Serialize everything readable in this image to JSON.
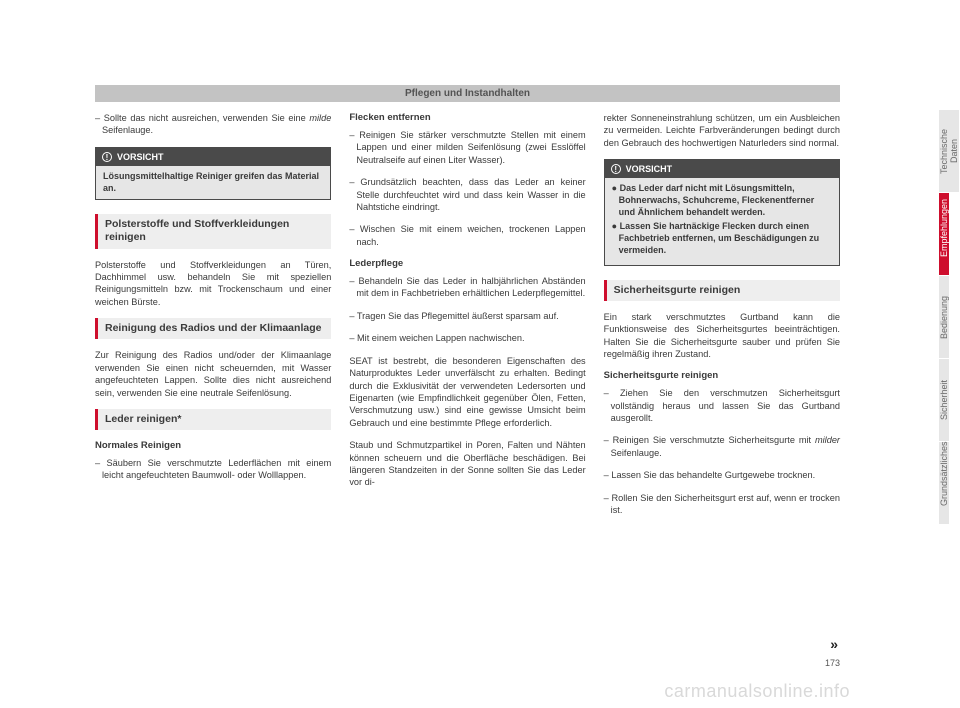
{
  "chapter_title": "Pflegen und Instandhalten",
  "page_number": "173",
  "watermark": "carmanualsonline.info",
  "continue_marker": "»",
  "side_tabs": [
    {
      "label": "Technische Daten",
      "active": false
    },
    {
      "label": "Empfehlungen",
      "active": true
    },
    {
      "label": "Bedienung",
      "active": false
    },
    {
      "label": "Sicherheit",
      "active": false
    },
    {
      "label": "Grundsätzliches",
      "active": false
    }
  ],
  "col1": {
    "intro_bullet_pre": "Sollte das nicht ausreichen, verwenden Sie eine ",
    "intro_bullet_em": "milde",
    "intro_bullet_post": " Seifenlauge.",
    "warn1": {
      "title": "VORSICHT",
      "body": "Lösungsmittelhaltige Reiniger greifen das Material an."
    },
    "sec1_title": "Polsterstoffe und Stoffverkleidungen reinigen",
    "sec1_body": "Polsterstoffe und Stoffverkleidungen an Türen, Dachhimmel usw. behandeln Sie mit speziellen Reinigungsmitteln bzw. mit Trockenschaum und einer weichen Bürste.",
    "sec2_title": "Reinigung des Radios und der Klimaanlage",
    "sec2_body": "Zur Reinigung des Radios und/oder der Klimaanlage verwenden Sie einen nicht scheuernden, mit Wasser angefeuchteten Lappen. Sollte dies nicht ausreichend sein, verwenden Sie eine neutrale Seifenlösung.",
    "sec3_title": "Leder reinigen*",
    "sec3_sub": "Normales Reinigen",
    "sec3_bullet": "Säubern Sie verschmutzte Lederflächen mit einem leicht angefeuchteten Baumwoll- oder Wolllappen."
  },
  "col2": {
    "sub1": "Flecken entfernen",
    "b1": "Reinigen Sie stärker verschmutzte Stellen mit einem Lappen und einer milden Seifenlösung (zwei Esslöffel Neutralseife auf einen Liter Wasser).",
    "b2": "Grundsätzlich beachten, dass das Leder an keiner Stelle durchfeuchtet wird und dass kein Wasser in die Nahtstiche eindringt.",
    "b3": "Wischen Sie mit einem weichen, trockenen Lappen nach.",
    "sub2": "Lederpflege",
    "b4": "Behandeln Sie das Leder in halbjährlichen Abständen mit dem in Fachbetrieben erhältlichen Lederpflegemittel.",
    "b5": "Tragen Sie das Pflegemittel äußerst sparsam auf.",
    "b6": "Mit einem weichen Lappen nachwischen.",
    "p1": "SEAT ist bestrebt, die besonderen Eigenschaften des Naturproduktes Leder unverfälscht zu erhalten. Bedingt durch die Exklusivität der verwendeten Ledersorten und Eigenarten (wie Empfindlichkeit gegenüber Ölen, Fetten, Verschmutzung usw.) sind eine gewisse Umsicht beim Gebrauch und eine bestimmte Pflege erforderlich.",
    "p2": "Staub und Schmutzpartikel in Poren, Falten und Nähten können scheuern und die Oberfläche beschädigen. Bei längeren Standzeiten in der Sonne sollten Sie das Leder vor di-"
  },
  "col3": {
    "p1": "rekter Sonneneinstrahlung schützen, um ein Ausbleichen zu vermeiden. Leichte Farbveränderungen bedingt durch den Gebrauch des hochwertigen Naturleders sind normal.",
    "warn2": {
      "title": "VORSICHT",
      "w1": "● Das Leder darf nicht mit Lösungsmitteln, Bohnerwachs, Schuhcreme, Fleckenentferner und Ähnlichem behandelt werden.",
      "w2": "● Lassen Sie hartnäckige Flecken durch einen Fachbetrieb entfernen, um Beschädigungen zu vermeiden."
    },
    "sec_title": "Sicherheitsgurte reinigen",
    "p2": "Ein stark verschmutztes Gurtband kann die Funktionsweise des Sicherheitsgurtes beeinträchtigen. Halten Sie die Sicherheitsgurte sauber und prüfen Sie regelmäßig ihren Zustand.",
    "sub": "Sicherheitsgurte reinigen",
    "b1": "Ziehen Sie den verschmutzen Sicherheitsgurt vollständig heraus und lassen Sie das Gurtband ausgerollt.",
    "b2_pre": "Reinigen Sie verschmutzte Sicherheitsgurte mit ",
    "b2_em": "milder",
    "b2_post": " Seifenlauge.",
    "b3": "Lassen Sie das behandelte Gurtgewebe trocknen.",
    "b4": "Rollen Sie den Sicherheitsgurt erst auf, wenn er trocken ist."
  },
  "colors": {
    "accent": "#ce0e2d",
    "tab_bg": "#e6e6e6",
    "warn_head_bg": "#4a4a4a",
    "chapter_bg": "#c3c3c3"
  }
}
